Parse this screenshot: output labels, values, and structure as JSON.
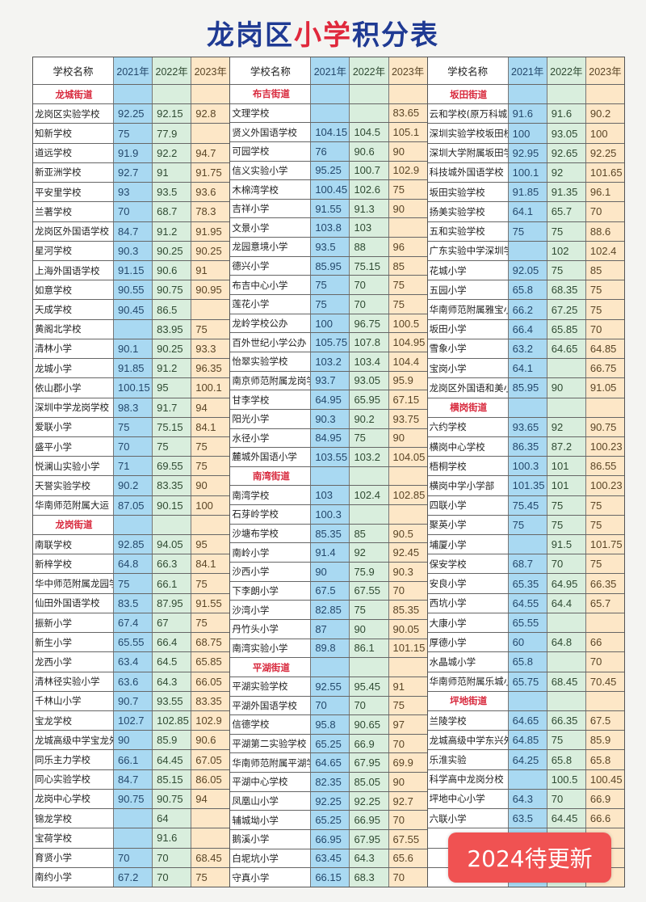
{
  "title": {
    "part1": "龙岗区",
    "part2": "小学",
    "part3": "积分表"
  },
  "headers": {
    "name": "学校名称",
    "years": [
      "2021年",
      "2022年",
      "2023年"
    ]
  },
  "colors": {
    "y2021": "#a9d9f2",
    "y2022": "#d9eedd",
    "y2023": "#fde7c7",
    "section": "#d8283c",
    "title": "#1f3a93",
    "badge": "#f05252"
  },
  "badge": "2024待更新",
  "columns": [
    [
      {
        "section": "龙城街道"
      },
      {
        "name": "龙岗区实验学校",
        "v": [
          "92.25",
          "92.15",
          "92.8"
        ]
      },
      {
        "name": "知新学校",
        "v": [
          "75",
          "77.9",
          ""
        ]
      },
      {
        "name": "道远学校",
        "v": [
          "91.9",
          "92.2",
          "94.7"
        ]
      },
      {
        "name": "新亚洲学校",
        "v": [
          "92.7",
          "91",
          "91.75"
        ]
      },
      {
        "name": "平安里学校",
        "v": [
          "93",
          "93.5",
          "93.6"
        ]
      },
      {
        "name": "兰著学校",
        "v": [
          "70",
          "68.7",
          "78.3"
        ]
      },
      {
        "name": "龙岗区外国语学校",
        "v": [
          "84.7",
          "91.2",
          "91.95"
        ]
      },
      {
        "name": "星河学校",
        "v": [
          "90.3",
          "90.25",
          "90.25"
        ]
      },
      {
        "name": "上海外国语学校",
        "v": [
          "91.15",
          "90.6",
          "91"
        ]
      },
      {
        "name": "如意学校",
        "v": [
          "90.55",
          "90.75",
          "90.95"
        ]
      },
      {
        "name": "天成学校",
        "v": [
          "90.45",
          "86.5",
          ""
        ]
      },
      {
        "name": "黄阁北学校",
        "v": [
          "",
          "83.95",
          "75"
        ]
      },
      {
        "name": "清林小学",
        "v": [
          "90.1",
          "90.25",
          "93.3"
        ]
      },
      {
        "name": "龙城小学",
        "v": [
          "91.85",
          "91.2",
          "96.35"
        ]
      },
      {
        "name": "依山郡小学",
        "v": [
          "100.15",
          "95",
          "100.1"
        ]
      },
      {
        "name": "深圳中学龙岗学校",
        "v": [
          "98.3",
          "91.7",
          "94"
        ]
      },
      {
        "name": "爱联小学",
        "v": [
          "75",
          "75.15",
          "84.1"
        ]
      },
      {
        "name": "盛平小学",
        "v": [
          "70",
          "75",
          "75"
        ]
      },
      {
        "name": "悦澜山实验小学",
        "v": [
          "71",
          "69.55",
          "75"
        ]
      },
      {
        "name": "天誉实验学校",
        "v": [
          "90.2",
          "83.35",
          "90"
        ]
      },
      {
        "name": "华南师范附属大运",
        "v": [
          "87.05",
          "90.15",
          "100"
        ]
      },
      {
        "section": "龙岗街道"
      },
      {
        "name": "南联学校",
        "v": [
          "92.85",
          "94.05",
          "95"
        ]
      },
      {
        "name": "新梓学校",
        "v": [
          "64.8",
          "66.3",
          "84.1"
        ]
      },
      {
        "name": "华中师范附属龙园学校",
        "v": [
          "75",
          "66.1",
          "75"
        ]
      },
      {
        "name": "仙田外国语学校",
        "v": [
          "83.5",
          "87.95",
          "91.55"
        ]
      },
      {
        "name": "振新小学",
        "v": [
          "67.4",
          "67",
          "75"
        ]
      },
      {
        "name": "新生小学",
        "v": [
          "65.55",
          "66.4",
          "68.75"
        ]
      },
      {
        "name": "龙西小学",
        "v": [
          "63.4",
          "64.5",
          "65.85"
        ]
      },
      {
        "name": "清林径实验小学",
        "v": [
          "63.6",
          "64.3",
          "66.05"
        ]
      },
      {
        "name": "千林山小学",
        "v": [
          "90.7",
          "93.55",
          "83.35"
        ]
      },
      {
        "name": "宝龙学校",
        "v": [
          "102.7",
          "102.85",
          "102.9"
        ]
      },
      {
        "name": "龙城高级中学宝龙外国语",
        "v": [
          "90",
          "85.9",
          "90.6"
        ]
      },
      {
        "name": "同乐主力学校",
        "v": [
          "66.1",
          "64.45",
          "67.05"
        ]
      },
      {
        "name": "同心实验学校",
        "v": [
          "84.7",
          "85.15",
          "86.05"
        ]
      },
      {
        "name": "龙岗中心学校",
        "v": [
          "90.75",
          "90.75",
          "94"
        ]
      },
      {
        "name": "锦龙学校",
        "v": [
          "",
          "64",
          ""
        ]
      },
      {
        "name": "宝荷学校",
        "v": [
          "",
          "91.6",
          ""
        ]
      },
      {
        "name": "育贤小学",
        "v": [
          "70",
          "70",
          "68.45"
        ]
      },
      {
        "name": "南约小学",
        "v": [
          "67.2",
          "70",
          "75"
        ]
      }
    ],
    [
      {
        "section": "布吉街道"
      },
      {
        "name": "文理学校",
        "v": [
          "",
          "",
          "83.65"
        ]
      },
      {
        "name": "贤义外国语学校",
        "v": [
          "104.15",
          "104.5",
          "105.1"
        ]
      },
      {
        "name": "可园学校",
        "v": [
          "76",
          "90.6",
          "90"
        ]
      },
      {
        "name": "信义实验小学",
        "v": [
          "95.25",
          "100.7",
          "102.9"
        ]
      },
      {
        "name": "木棉湾学校",
        "v": [
          "100.45",
          "102.6",
          "75"
        ]
      },
      {
        "name": "吉祥小学",
        "v": [
          "91.55",
          "91.3",
          "90"
        ]
      },
      {
        "name": "文景小学",
        "v": [
          "103.8",
          "103",
          ""
        ]
      },
      {
        "name": "龙园意境小学",
        "v": [
          "93.5",
          "88",
          "96"
        ]
      },
      {
        "name": "德兴小学",
        "v": [
          "85.95",
          "75.15",
          "85"
        ]
      },
      {
        "name": "布吉中心小学",
        "v": [
          "75",
          "70",
          "75"
        ]
      },
      {
        "name": "莲花小学",
        "v": [
          "75",
          "70",
          "75"
        ]
      },
      {
        "name": "龙岭学校公办",
        "v": [
          "100",
          "96.75",
          "100.5"
        ]
      },
      {
        "name": "百外世纪小学公办",
        "v": [
          "105.75",
          "107.8",
          "104.95"
        ]
      },
      {
        "name": "怡翠实验学校",
        "v": [
          "103.2",
          "103.4",
          "104.4"
        ]
      },
      {
        "name": "南京师范附属龙岗学校",
        "v": [
          "93.7",
          "93.05",
          "95.9"
        ]
      },
      {
        "name": "甘李学校",
        "v": [
          "64.95",
          "65.95",
          "67.15"
        ]
      },
      {
        "name": "阳光小学",
        "v": [
          "90.3",
          "90.2",
          "93.75"
        ]
      },
      {
        "name": "水径小学",
        "v": [
          "84.95",
          "75",
          "90"
        ]
      },
      {
        "name": "麓城外国语小学",
        "v": [
          "103.55",
          "103.2",
          "104.05"
        ]
      },
      {
        "section": "南湾街道"
      },
      {
        "name": "南湾学校",
        "v": [
          "103",
          "102.4",
          "102.85"
        ]
      },
      {
        "name": "石芽岭学校",
        "v": [
          "100.3",
          "",
          ""
        ]
      },
      {
        "name": "沙塘布学校",
        "v": [
          "85.35",
          "85",
          "90.5"
        ]
      },
      {
        "name": "南岭小学",
        "v": [
          "91.4",
          "92",
          "92.45"
        ]
      },
      {
        "name": "沙西小学",
        "v": [
          "90",
          "75.9",
          "90.3"
        ]
      },
      {
        "name": "下李朗小学",
        "v": [
          "67.5",
          "67.55",
          "70"
        ]
      },
      {
        "name": "沙湾小学",
        "v": [
          "82.85",
          "75",
          "85.35"
        ]
      },
      {
        "name": "丹竹头小学",
        "v": [
          "87",
          "90",
          "90.05"
        ]
      },
      {
        "name": "南湾实验小学",
        "v": [
          "89.8",
          "86.1",
          "101.15"
        ]
      },
      {
        "section": "平湖街道"
      },
      {
        "name": "平湖实验学校",
        "v": [
          "92.55",
          "95.45",
          "91"
        ]
      },
      {
        "name": "平湖外国语学校",
        "v": [
          "70",
          "70",
          "75"
        ]
      },
      {
        "name": "信德学校",
        "v": [
          "95.8",
          "90.65",
          "97"
        ]
      },
      {
        "name": "平湖第二实验学校",
        "v": [
          "65.25",
          "66.9",
          "70"
        ]
      },
      {
        "name": "华南师范附属平湖学校",
        "v": [
          "64.65",
          "67.95",
          "69.9"
        ]
      },
      {
        "name": "平湖中心学校",
        "v": [
          "82.35",
          "85.05",
          "90"
        ]
      },
      {
        "name": "凤凰山小学",
        "v": [
          "92.25",
          "92.25",
          "92.7"
        ]
      },
      {
        "name": "辅城坳小学",
        "v": [
          "65.25",
          "66.95",
          "70"
        ]
      },
      {
        "name": "鹅溪小学",
        "v": [
          "66.95",
          "67.95",
          "67.55"
        ]
      },
      {
        "name": "白坭坑小学",
        "v": [
          "63.45",
          "64.3",
          "65.6"
        ]
      },
      {
        "name": "守真小学",
        "v": [
          "66.15",
          "68.3",
          "70"
        ]
      }
    ],
    [
      {
        "section": "坂田街道"
      },
      {
        "name": "云和学校(原万科城实验)",
        "v": [
          "91.6",
          "91.6",
          "90.2"
        ]
      },
      {
        "name": "深圳实验学校坂田校区",
        "v": [
          "100",
          "93.05",
          "100"
        ]
      },
      {
        "name": "深圳大学附属坂田学校",
        "v": [
          "92.95",
          "92.65",
          "92.25"
        ]
      },
      {
        "name": "科技城外国语学校",
        "v": [
          "100.1",
          "92",
          "101.65"
        ]
      },
      {
        "name": "坂田实验学校",
        "v": [
          "91.85",
          "91.35",
          "96.1"
        ]
      },
      {
        "name": "扬美实验学校",
        "v": [
          "64.1",
          "65.7",
          "70"
        ]
      },
      {
        "name": "五和实验学校",
        "v": [
          "75",
          "75",
          "88.6"
        ]
      },
      {
        "name": "广东实验中学深圳学校",
        "v": [
          "",
          "102",
          "102.4"
        ]
      },
      {
        "name": "花城小学",
        "v": [
          "92.05",
          "75",
          "85"
        ]
      },
      {
        "name": "五园小学",
        "v": [
          "65.8",
          "68.35",
          "75"
        ]
      },
      {
        "name": "华南师范附属雅宝小学",
        "v": [
          "66.2",
          "67.25",
          "75"
        ]
      },
      {
        "name": "坂田小学",
        "v": [
          "66.4",
          "65.85",
          "70"
        ]
      },
      {
        "name": "雪象小学",
        "v": [
          "63.2",
          "64.65",
          "64.85"
        ]
      },
      {
        "name": "宝岗小学",
        "v": [
          "64.1",
          "",
          "66.75"
        ]
      },
      {
        "name": "龙岗区外国语和美小学",
        "v": [
          "85.95",
          "90",
          "91.05"
        ]
      },
      {
        "section": "横岗街道"
      },
      {
        "name": "六约学校",
        "v": [
          "93.65",
          "92",
          "90.75"
        ]
      },
      {
        "name": "横岗中心学校",
        "v": [
          "86.35",
          "87.2",
          "100.23"
        ]
      },
      {
        "name": "梧桐学校",
        "v": [
          "100.3",
          "101",
          "86.55"
        ]
      },
      {
        "name": "横岗中学小学部",
        "v": [
          "101.35",
          "101",
          "100.23"
        ]
      },
      {
        "name": "四联小学",
        "v": [
          "75.45",
          "75",
          "75"
        ]
      },
      {
        "name": "聚英小学",
        "v": [
          "75",
          "75",
          "75"
        ]
      },
      {
        "name": "埔厦小学",
        "v": [
          "",
          "91.5",
          "101.75"
        ]
      },
      {
        "name": "保安学校",
        "v": [
          "68.7",
          "70",
          "75"
        ]
      },
      {
        "name": "安良小学",
        "v": [
          "65.35",
          "64.95",
          "66.35"
        ]
      },
      {
        "name": "西坑小学",
        "v": [
          "64.55",
          "64.4",
          "65.7"
        ]
      },
      {
        "name": "大康小学",
        "v": [
          "65.55",
          "",
          ""
        ]
      },
      {
        "name": "厚德小学",
        "v": [
          "60",
          "64.8",
          "66"
        ]
      },
      {
        "name": "水晶城小学",
        "v": [
          "65.8",
          "",
          "70"
        ]
      },
      {
        "name": "华南师范附属乐城小学",
        "v": [
          "65.75",
          "68.45",
          "70.45"
        ]
      },
      {
        "section": "坪地街道"
      },
      {
        "name": "兰陵学校",
        "v": [
          "64.65",
          "66.35",
          "67.5"
        ]
      },
      {
        "name": "龙城高级中学东兴外国语",
        "v": [
          "64.85",
          "75",
          "85.9"
        ]
      },
      {
        "name": "乐淮实验",
        "v": [
          "64.25",
          "65.8",
          "65.8"
        ]
      },
      {
        "name": "科学高中龙岗分校",
        "v": [
          "",
          "100.5",
          "100.45"
        ]
      },
      {
        "name": "坪地中心小学",
        "v": [
          "64.3",
          "70",
          "66.9"
        ]
      },
      {
        "name": "六联小学",
        "v": [
          "63.5",
          "64.45",
          "66.6"
        ]
      },
      {
        "name": "",
        "v": [
          "",
          "",
          ""
        ]
      },
      {
        "name": "",
        "v": [
          "",
          "",
          ""
        ]
      },
      {
        "name": "",
        "v": [
          "",
          "",
          ""
        ]
      }
    ]
  ]
}
